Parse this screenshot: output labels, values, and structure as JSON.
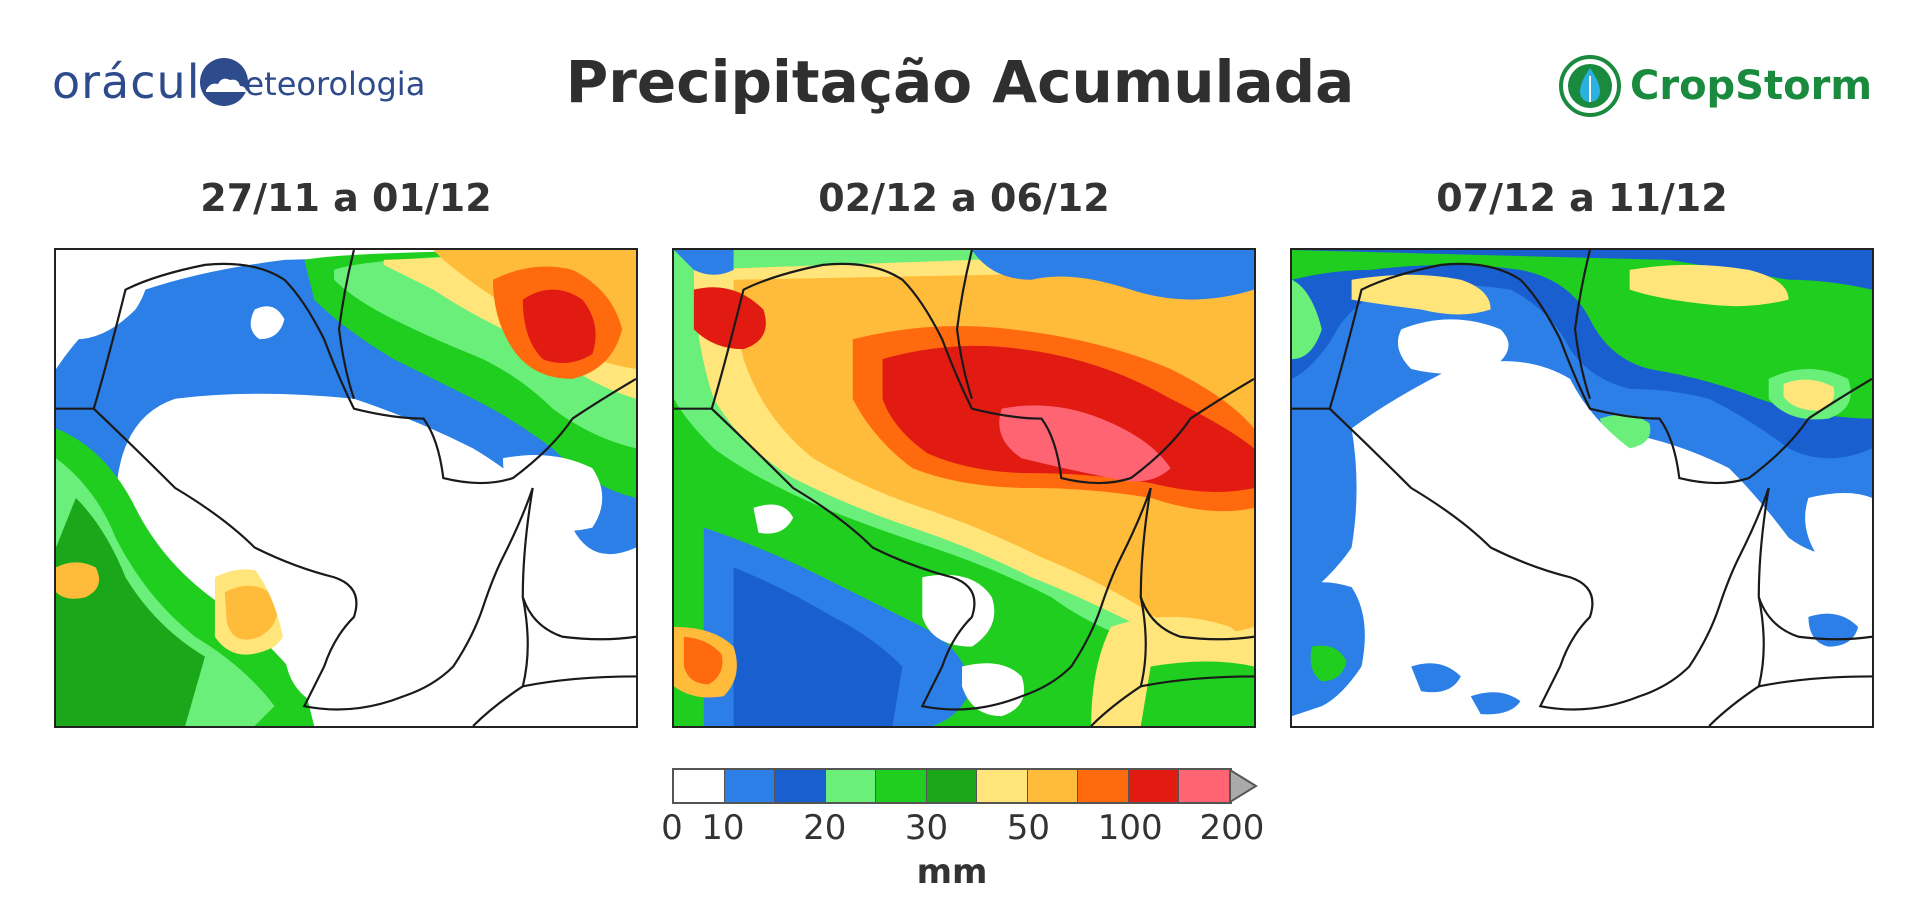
{
  "header": {
    "title": "Precipitação Acumulada",
    "left_logo": {
      "text_a": "orácul",
      "text_b": "eteorologia",
      "icon": "cloud-sun-icon"
    },
    "right_logo": {
      "text": "CropStorm",
      "icon": "droplet-icon"
    }
  },
  "colors": {
    "white": "#ffffff",
    "blue1": "#2b7fe6",
    "blue2": "#1a5fcf",
    "green1": "#6af07a",
    "green2": "#1fce1f",
    "green3": "#1aa81a",
    "yellow": "#ffe57a",
    "orange1": "#ffbb3a",
    "orange2": "#ff6a0f",
    "red": "#e11a12",
    "pink": "#ff6472",
    "boundary": "#1a1a1a"
  },
  "panels": [
    {
      "title": "27/11 a 01/12"
    },
    {
      "title": "02/12 a 06/12"
    },
    {
      "title": "07/12 a 11/12"
    }
  ],
  "legend": {
    "ticks": [
      "0",
      "10",
      "20",
      "30",
      "50",
      "100",
      "200"
    ],
    "unit": "mm",
    "bins": [
      "#ffffff",
      "#2b7fe6",
      "#1a5fcf",
      "#6af07a",
      "#1fce1f",
      "#1aa81a",
      "#ffe57a",
      "#ffbb3a",
      "#ff6a0f",
      "#e11a12",
      "#ff6472"
    ]
  }
}
